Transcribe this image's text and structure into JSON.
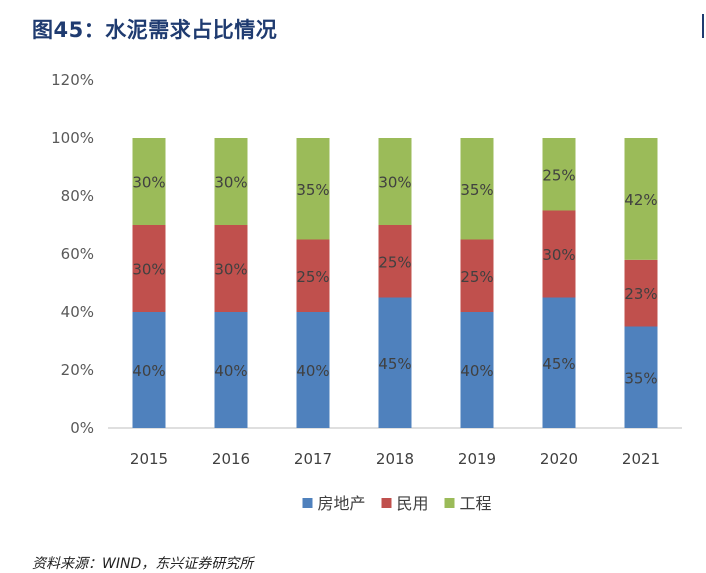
{
  "header": {
    "title": "图45：水泥需求占比情况"
  },
  "footer": {
    "source": "资料来源：WIND，东兴证券研究所"
  },
  "chart_data": {
    "type": "bar",
    "stacked": true,
    "categories": [
      "2015",
      "2016",
      "2017",
      "2018",
      "2019",
      "2020",
      "2021"
    ],
    "series": [
      {
        "name": "房地产",
        "color": "#4f81bd",
        "values": [
          40,
          40,
          40,
          45,
          40,
          45,
          35
        ],
        "labels": [
          "40%",
          "40%",
          "40%",
          "45%",
          "40%",
          "45%",
          "35%"
        ]
      },
      {
        "name": "民用",
        "color": "#c0504d",
        "values": [
          30,
          30,
          25,
          25,
          25,
          30,
          23
        ],
        "labels": [
          "30%",
          "30%",
          "25%",
          "25%",
          "25%",
          "30%",
          "23%"
        ]
      },
      {
        "name": "工程",
        "color": "#9bbb59",
        "values": [
          30,
          30,
          35,
          30,
          35,
          25,
          42
        ],
        "labels": [
          "30%",
          "30%",
          "35%",
          "30%",
          "35%",
          "25%",
          "42%"
        ]
      }
    ],
    "yticks": [
      "0%",
      "20%",
      "40%",
      "60%",
      "80%",
      "100%",
      "120%"
    ],
    "ylim": [
      0,
      120
    ],
    "grid": false,
    "legend": "bottom-center"
  }
}
